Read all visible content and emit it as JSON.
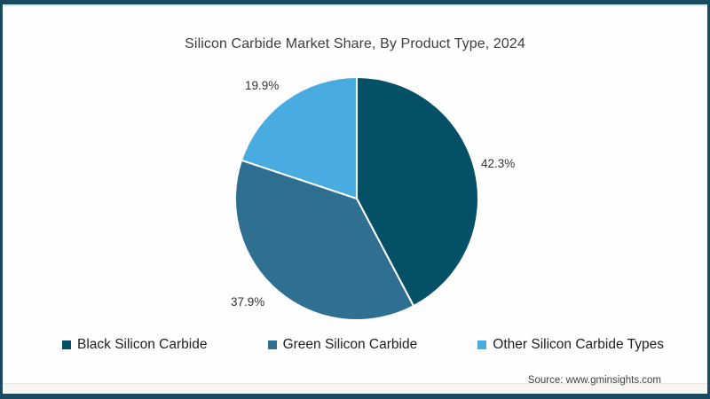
{
  "page": {
    "source": "Source: www.gminsights.com"
  },
  "chart_data": {
    "type": "pie",
    "title": "Silicon Carbide Market Share, By Product Type, 2024",
    "unit": "%",
    "start_angle_deg": 0,
    "direction": "clockwise",
    "legend_position": "bottom",
    "slices": [
      {
        "label": "Black Silicon Carbide",
        "value": 42.3,
        "display": "42.3%",
        "color": "#045066"
      },
      {
        "label": "Green Silicon Carbide",
        "value": 37.9,
        "display": "37.9%",
        "color": "#2f7092"
      },
      {
        "label": "Other Silicon Carbide Types",
        "value": 19.9,
        "display": "19.9%",
        "color": "#48ace1"
      }
    ],
    "colors": {
      "frame_border": "#1a4a60",
      "slice_divider": "#ffffff"
    }
  }
}
